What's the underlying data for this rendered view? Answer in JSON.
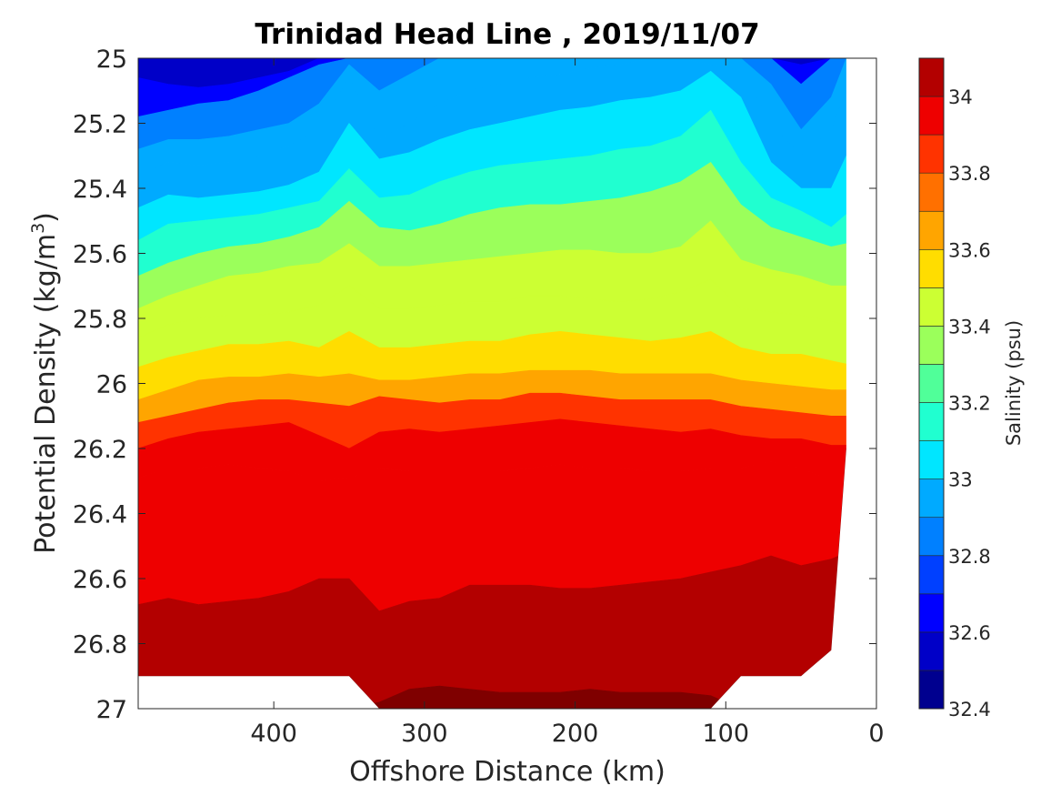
{
  "chart_data": {
    "type": "heatmap",
    "subtype": "filled-contour",
    "title": "Trinidad Head Line , 2019/11/07",
    "xlabel": "Offshore Distance (km)",
    "ylabel_prefix": "Potential Density (kg/m",
    "ylabel_superscript": "3",
    "ylabel_suffix": ")",
    "x_reversed": true,
    "y_reversed": true,
    "xlim": [
      0,
      490
    ],
    "ylim": [
      25,
      27
    ],
    "xticks": [
      400,
      300,
      200,
      100,
      0
    ],
    "yticks": [
      25,
      25.2,
      25.4,
      25.6,
      25.8,
      26,
      26.2,
      26.4,
      26.6,
      26.8,
      27
    ],
    "colorbar": {
      "label": "Salinity (psu)",
      "range": [
        32.4,
        34.1
      ],
      "ticks": [
        32.4,
        32.6,
        32.8,
        33,
        33.2,
        33.4,
        33.6,
        33.8,
        34
      ],
      "levels": [
        32.4,
        32.5,
        32.6,
        32.7,
        32.8,
        32.9,
        33.0,
        33.1,
        33.2,
        33.3,
        33.4,
        33.5,
        33.6,
        33.7,
        33.8,
        33.9,
        34.0,
        34.1
      ],
      "colors": [
        "#00008f",
        "#0000c8",
        "#0000ff",
        "#0040ff",
        "#0080ff",
        "#00aaff",
        "#00e6ff",
        "#20ffd0",
        "#50ff99",
        "#9bff5b",
        "#ccff33",
        "#ffdd00",
        "#ffa500",
        "#ff7000",
        "#ff3300",
        "#ee0000",
        "#b30000",
        "#7f0000"
      ]
    },
    "contour_data": {
      "x": [
        490,
        470,
        450,
        430,
        410,
        390,
        370,
        350,
        330,
        310,
        290,
        270,
        250,
        230,
        210,
        190,
        170,
        150,
        130,
        110,
        90,
        70,
        50,
        30,
        20
      ],
      "boundaries": [
        {
          "level": 32.65,
          "y": [
            25.06,
            25.08,
            25.09,
            25.08,
            25.06,
            25.04,
            25.0,
            25.0,
            25.0,
            25.0,
            25.0,
            25.0,
            25.0,
            25.0,
            25.0,
            25.0,
            25.0,
            25.0,
            25.0,
            25.0,
            25.0,
            25.0,
            25.02,
            25.0,
            25.0
          ]
        },
        {
          "level": 32.75,
          "y": [
            25.18,
            25.16,
            25.14,
            25.13,
            25.1,
            25.06,
            25.02,
            25.0,
            25.0,
            25.0,
            25.0,
            25.0,
            25.0,
            25.0,
            25.0,
            25.0,
            25.0,
            25.0,
            25.0,
            25.0,
            25.0,
            25.0,
            25.08,
            25.0,
            25.0
          ]
        },
        {
          "level": 32.85,
          "y": [
            25.28,
            25.25,
            25.25,
            25.24,
            25.22,
            25.2,
            25.14,
            25.02,
            25.1,
            25.05,
            25.0,
            25.0,
            25.0,
            25.0,
            25.0,
            25.0,
            25.0,
            25.0,
            25.0,
            25.0,
            25.0,
            25.08,
            25.22,
            25.12,
            25.0
          ]
        },
        {
          "level": 32.95,
          "y": [
            25.36,
            25.32,
            25.33,
            25.32,
            25.3,
            25.27,
            25.22,
            25.06,
            25.25,
            25.2,
            25.14,
            25.1,
            25.08,
            25.06,
            25.05,
            25.03,
            25.02,
            25.0,
            25.0,
            25.02,
            25.04,
            25.2,
            25.3,
            25.22,
            25.1
          ]
        },
        {
          "level": 33.05,
          "y": [
            25.46,
            25.42,
            25.43,
            25.42,
            25.41,
            25.39,
            25.35,
            25.2,
            25.31,
            25.29,
            25.25,
            25.22,
            25.2,
            25.18,
            25.16,
            25.15,
            25.13,
            25.12,
            25.1,
            25.04,
            25.12,
            25.32,
            25.4,
            25.4,
            25.3
          ]
        },
        {
          "level": 33.15,
          "y": [
            25.56,
            25.51,
            25.5,
            25.49,
            25.48,
            25.46,
            25.44,
            25.34,
            25.43,
            25.42,
            25.38,
            25.35,
            25.33,
            25.32,
            25.31,
            25.3,
            25.28,
            25.27,
            25.24,
            25.16,
            25.32,
            25.43,
            25.47,
            25.52,
            25.48
          ]
        },
        {
          "level": 33.25,
          "y": [
            25.67,
            25.63,
            25.6,
            25.58,
            25.57,
            25.55,
            25.52,
            25.44,
            25.52,
            25.53,
            25.51,
            25.48,
            25.46,
            25.45,
            25.45,
            25.44,
            25.43,
            25.41,
            25.38,
            25.32,
            25.45,
            25.52,
            25.55,
            25.58,
            25.57
          ]
        },
        {
          "level": 33.35,
          "y": [
            25.77,
            25.73,
            25.7,
            25.67,
            25.66,
            25.64,
            25.63,
            25.57,
            25.64,
            25.64,
            25.63,
            25.62,
            25.61,
            25.6,
            25.59,
            25.59,
            25.6,
            25.6,
            25.58,
            25.5,
            25.62,
            25.65,
            25.67,
            25.7,
            25.7
          ]
        },
        {
          "level": 33.45,
          "y": [
            25.86,
            25.82,
            25.8,
            25.79,
            25.79,
            25.78,
            25.76,
            25.7,
            25.77,
            25.77,
            25.76,
            25.75,
            25.75,
            25.73,
            25.73,
            25.74,
            25.75,
            25.74,
            25.72,
            25.68,
            25.77,
            25.78,
            25.79,
            25.81,
            25.82
          ]
        },
        {
          "level": 33.55,
          "y": [
            25.95,
            25.92,
            25.9,
            25.88,
            25.88,
            25.87,
            25.89,
            25.84,
            25.89,
            25.89,
            25.88,
            25.87,
            25.87,
            25.85,
            25.84,
            25.85,
            25.86,
            25.87,
            25.86,
            25.84,
            25.89,
            25.91,
            25.91,
            25.93,
            25.94
          ]
        },
        {
          "level": 33.65,
          "y": [
            26.05,
            26.02,
            25.99,
            25.98,
            25.98,
            25.97,
            25.98,
            25.97,
            25.99,
            25.99,
            25.98,
            25.97,
            25.97,
            25.96,
            25.96,
            25.96,
            25.97,
            25.97,
            25.97,
            25.97,
            25.99,
            26.0,
            26.01,
            26.02,
            26.02
          ]
        },
        {
          "level": 33.75,
          "y": [
            26.12,
            26.1,
            26.08,
            26.06,
            26.05,
            26.05,
            26.06,
            26.07,
            26.04,
            26.05,
            26.06,
            26.05,
            26.05,
            26.03,
            26.03,
            26.04,
            26.05,
            26.05,
            26.05,
            26.05,
            26.07,
            26.08,
            26.09,
            26.1,
            26.1
          ]
        },
        {
          "level": 33.85,
          "y": [
            26.2,
            26.17,
            26.15,
            26.14,
            26.13,
            26.12,
            26.16,
            26.2,
            26.15,
            26.14,
            26.15,
            26.14,
            26.13,
            26.12,
            26.11,
            26.12,
            26.13,
            26.14,
            26.15,
            26.14,
            26.16,
            26.17,
            26.17,
            26.19,
            26.19
          ]
        },
        {
          "level": 33.95,
          "y": [
            26.29,
            26.26,
            26.26,
            26.25,
            26.26,
            26.27,
            26.3,
            26.29,
            26.26,
            26.27,
            26.27,
            26.27,
            26.27,
            26.26,
            26.25,
            26.26,
            26.26,
            26.27,
            26.27,
            26.26,
            26.26,
            26.24,
            26.26,
            26.3,
            26.28
          ]
        },
        {
          "level": 34.05,
          "y": [
            26.68,
            26.66,
            26.68,
            26.67,
            26.66,
            26.64,
            26.6,
            26.6,
            26.7,
            26.67,
            26.66,
            26.62,
            26.62,
            26.62,
            26.63,
            26.63,
            26.62,
            26.61,
            26.6,
            26.58,
            26.56,
            26.53,
            26.56,
            26.54,
            26.52
          ]
        },
        {
          "level": 34.15,
          "y": [
            27.0,
            27.0,
            27.0,
            27.0,
            27.0,
            27.0,
            27.0,
            27.0,
            26.98,
            26.94,
            26.93,
            26.94,
            26.95,
            26.95,
            26.95,
            26.94,
            26.95,
            26.95,
            26.95,
            26.96,
            27.0,
            27.0,
            27.0,
            27.0,
            27.0
          ]
        }
      ],
      "mask_top": [
        25.0,
        25.0,
        25.0,
        25.0,
        25.0,
        25.0,
        25.0,
        25.0,
        25.0,
        25.0,
        25.0,
        25.0,
        25.0,
        25.0,
        25.0,
        25.0,
        25.0,
        25.0,
        25.0,
        25.0,
        25.0,
        25.0,
        25.0,
        25.0,
        25.0
      ],
      "mask_bottom": [
        26.9,
        26.9,
        26.9,
        26.9,
        26.9,
        26.9,
        26.9,
        26.9,
        27.0,
        27.0,
        27.0,
        27.0,
        27.0,
        27.0,
        27.0,
        27.0,
        27.0,
        27.0,
        27.0,
        27.0,
        26.9,
        26.9,
        26.9,
        26.82,
        26.2
      ]
    }
  }
}
